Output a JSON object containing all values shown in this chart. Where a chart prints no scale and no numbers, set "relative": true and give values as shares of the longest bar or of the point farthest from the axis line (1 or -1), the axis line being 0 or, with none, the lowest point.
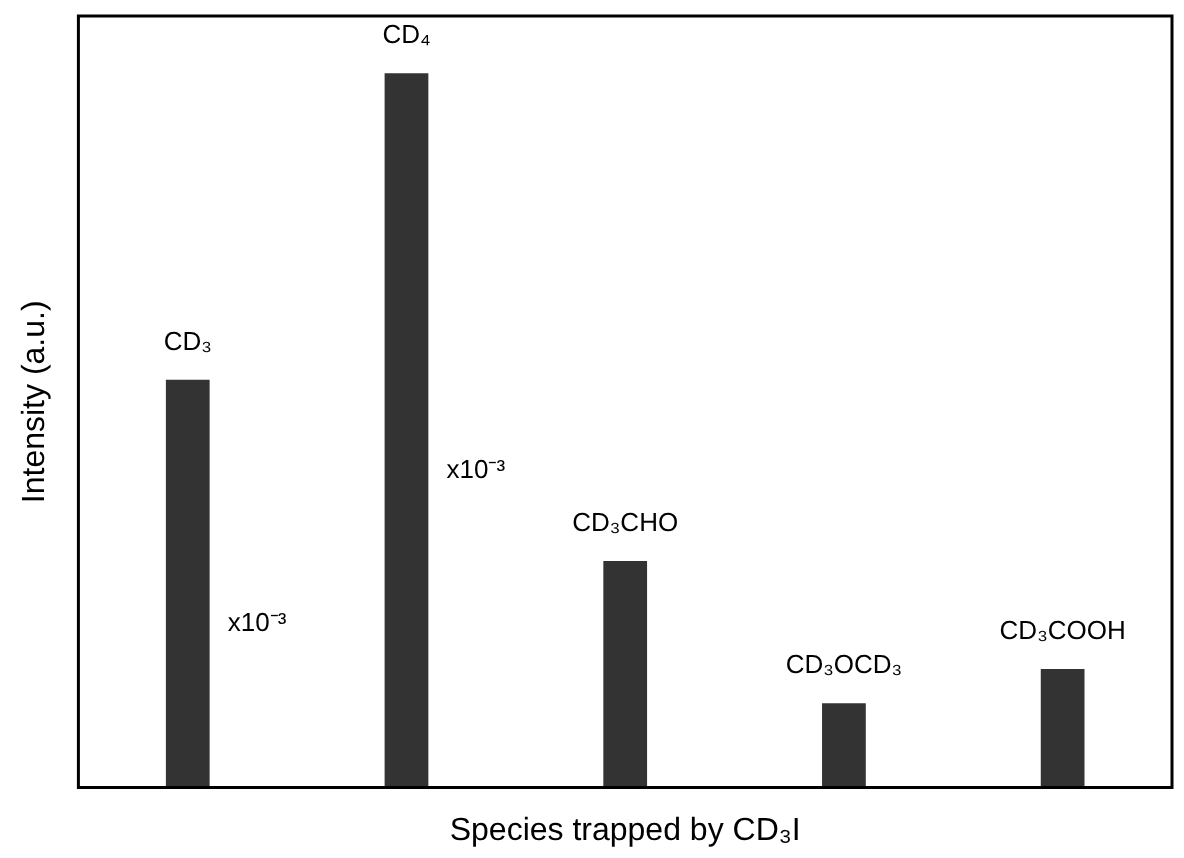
{
  "chart_data": {
    "type": "bar",
    "relative": true,
    "xlabel": "Species trapped by CD₃I",
    "ylabel": "Intensity (a.u.)",
    "categories": [
      "CD₃",
      "CD₄",
      "CD₃CHO",
      "CD₃OCD₃",
      "CD₃COOH"
    ],
    "values": [
      0.571,
      1,
      0.317,
      0.118,
      0.166
    ],
    "color": "#333333",
    "grid": false,
    "legend": false,
    "annotations": [
      "x10⁻³",
      "x10⁻³"
    ]
  }
}
